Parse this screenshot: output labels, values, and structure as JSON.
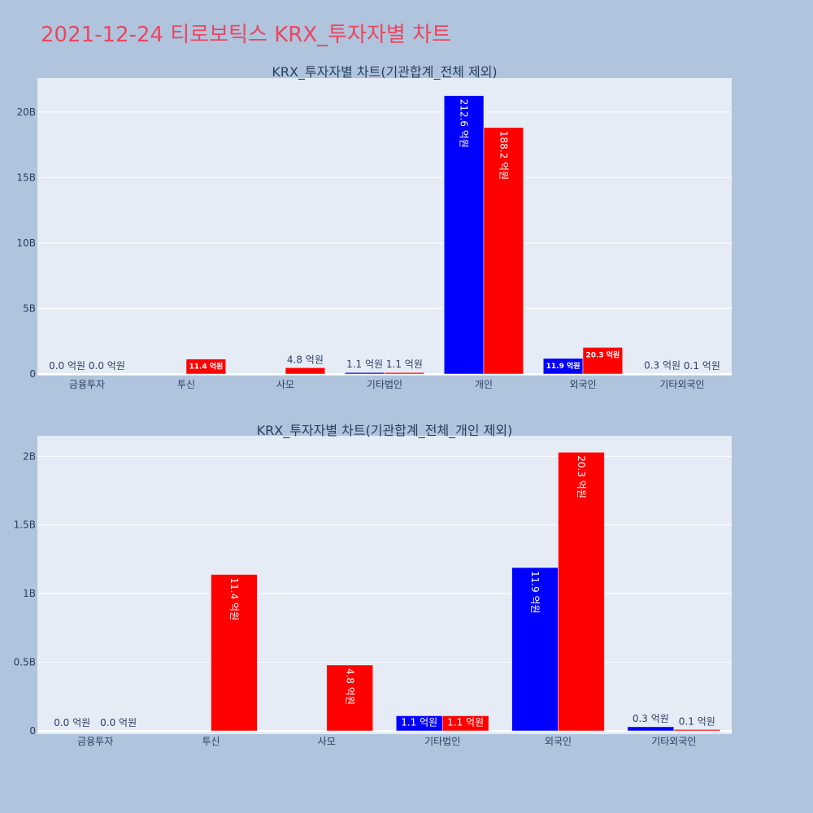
{
  "page": {
    "title": "2021-12-24 티로보틱스 KRX_투자자별 차트"
  },
  "colors": {
    "buy": "#0000ff",
    "sell": "#ff0000",
    "plot_bg": "#e5ecf6",
    "page_bg": "#b0c4de",
    "title": "#e8485f"
  },
  "chart_data": [
    {
      "type": "bar",
      "title": "KRX_투자자별 차트(기관합계_전체 제외)",
      "categories": [
        "금융투자",
        "투신",
        "사모",
        "기타법인",
        "개인",
        "외국인",
        "기타외국인"
      ],
      "ytick_labels": [
        "0",
        "5B",
        "10B",
        "15B",
        "20B"
      ],
      "ytick_values": [
        0,
        5,
        10,
        15,
        20
      ],
      "ylim": [
        0,
        22.6
      ],
      "grid": true,
      "series": [
        {
          "color": "#0000ff",
          "values": [
            0.0,
            0,
            0,
            0.11,
            21.26,
            1.19,
            0.03
          ],
          "labels": [
            "0.0 억원",
            "",
            "",
            "1.1 억원",
            "212.6 억원",
            "11.9 억원",
            "0.3 억원"
          ]
        },
        {
          "color": "#ff0000",
          "values": [
            0.0,
            1.14,
            0.48,
            0.11,
            18.82,
            2.03,
            0.01
          ],
          "labels": [
            "0.0 억원",
            "11.4 억원",
            "4.8 억원",
            "1.1 억원",
            "188.2 억원",
            "20.3 억원",
            "0.1 억원"
          ]
        }
      ]
    },
    {
      "type": "bar",
      "title": "KRX_투자자별 차트(기관합계_전체_개인 제외)",
      "categories": [
        "금융투자",
        "투신",
        "사모",
        "기타법인",
        "외국인",
        "기타외국인"
      ],
      "ytick_labels": [
        "0",
        "0.5B",
        "1B",
        "1.5B",
        "2B"
      ],
      "ytick_values": [
        0,
        0.5,
        1,
        1.5,
        2
      ],
      "ylim": [
        0,
        2.15
      ],
      "grid": true,
      "series": [
        {
          "color": "#0000ff",
          "values": [
            0.0,
            0,
            0,
            0.11,
            1.19,
            0.03
          ],
          "labels": [
            "0.0 억원",
            "",
            "",
            "1.1 억원",
            "11.9 억원",
            "0.3 억원"
          ]
        },
        {
          "color": "#ff0000",
          "values": [
            0.0,
            1.14,
            0.48,
            0.11,
            2.03,
            0.01
          ],
          "labels": [
            "0.0 억원",
            "11.4 억원",
            "4.8 억원",
            "1.1 억원",
            "20.3 억원",
            "0.1 억원"
          ]
        }
      ]
    }
  ]
}
